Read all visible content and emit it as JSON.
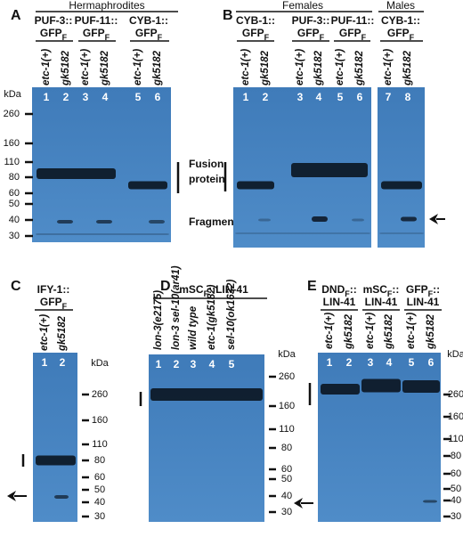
{
  "panels": [
    {
      "letter": "A",
      "headers": [
        "Hermaphrodites"
      ],
      "constructs": [
        [
          [
            {
              "text": "PUF-3::"
            }
          ],
          [
            {
              "text": "GFP"
            },
            {
              "text": "F",
              "sub": true
            }
          ]
        ],
        [
          [
            {
              "text": "PUF-11::"
            }
          ],
          [
            {
              "text": "GFP"
            },
            {
              "text": "F",
              "sub": true
            }
          ]
        ],
        [
          [
            {
              "text": "CYB-1::"
            }
          ],
          [
            {
              "text": "GFP"
            },
            {
              "text": "F",
              "sub": true
            }
          ]
        ]
      ],
      "lanes": [
        {
          "number": "1",
          "label": "etc-1(+)"
        },
        {
          "number": "2",
          "label": "gk5182"
        },
        {
          "number": "3",
          "label": "etc-1(+)"
        },
        {
          "number": "4",
          "label": "gk5182"
        },
        {
          "number": "5",
          "label": "etc-1(+)"
        },
        {
          "number": "6",
          "label": "gk5182"
        }
      ],
      "ladder": {
        "unit": "kDa",
        "marks": [
          "260",
          "160",
          "110",
          "80",
          "60",
          "50",
          "40",
          "30"
        ]
      },
      "notes": [
        "Fusion",
        "protein",
        "Fragment"
      ]
    },
    {
      "letter": "B",
      "headers": [
        "Females",
        "Males"
      ],
      "constructs": [
        [
          [
            {
              "text": "CYB-1::"
            }
          ],
          [
            {
              "text": "GFP"
            },
            {
              "text": "F",
              "sub": true
            }
          ]
        ],
        [
          [
            {
              "text": "PUF-3::"
            }
          ],
          [
            {
              "text": "GFP"
            },
            {
              "text": "F",
              "sub": true
            }
          ]
        ],
        [
          [
            {
              "text": "PUF-11::"
            }
          ],
          [
            {
              "text": "GFP"
            },
            {
              "text": "F",
              "sub": true
            }
          ]
        ],
        [
          [
            {
              "text": "CYB-1::"
            }
          ],
          [
            {
              "text": "GFP"
            },
            {
              "text": "F",
              "sub": true
            }
          ]
        ]
      ],
      "lanes": [
        {
          "number": "1",
          "label": "etc-1(+)"
        },
        {
          "number": "2",
          "label": "gk5182"
        },
        {
          "number": "3",
          "label": "etc-1(+)"
        },
        {
          "number": "4",
          "label": "gk5182"
        },
        {
          "number": "5",
          "label": "etc-1(+)"
        },
        {
          "number": "6",
          "label": "gk5182"
        },
        {
          "number": "7",
          "label": "etc-1(+)"
        },
        {
          "number": "8",
          "label": "gk5182"
        }
      ]
    },
    {
      "letter": "C",
      "headers": [],
      "constructs": [
        [
          [
            {
              "text": "IFY-1::"
            }
          ],
          [
            {
              "text": "GFP"
            },
            {
              "text": "F",
              "sub": true
            }
          ]
        ]
      ],
      "lanes": [
        {
          "number": "1",
          "label": "etc-1(+)"
        },
        {
          "number": "2",
          "label": "gk5182"
        }
      ],
      "ladder": {
        "unit": "kDa",
        "marks": [
          "260",
          "160",
          "110",
          "80",
          "60",
          "50",
          "40",
          "30"
        ]
      }
    },
    {
      "letter": "D",
      "headers": [],
      "constructs": [
        [
          [
            {
              "text": "mSC"
            },
            {
              "text": "F",
              "sub": true
            },
            {
              "text": "::LIN-41"
            }
          ]
        ]
      ],
      "lanes": [
        {
          "number": "1",
          "label": "lon-3(e2175)"
        },
        {
          "number": "2",
          "label": "lon-3 sel-10(ar41)"
        },
        {
          "number": "3",
          "label": "wild type"
        },
        {
          "number": "4",
          "label": "etc-1(gk5182)"
        },
        {
          "number": "5",
          "label": "sel-10(ok1632)"
        }
      ],
      "ladder": {
        "unit": "kDa",
        "marks": [
          "260",
          "160",
          "110",
          "80",
          "60",
          "50",
          "40",
          "30"
        ]
      }
    },
    {
      "letter": "E",
      "headers": [],
      "constructs": [
        [
          [
            {
              "text": "DND"
            },
            {
              "text": "F",
              "sub": true
            },
            {
              "text": "::"
            }
          ],
          [
            {
              "text": "LIN-41"
            }
          ]
        ],
        [
          [
            {
              "text": "mSC"
            },
            {
              "text": "F",
              "sub": true
            },
            {
              "text": "::"
            }
          ],
          [
            {
              "text": "LIN-41"
            }
          ]
        ],
        [
          [
            {
              "text": "GFP"
            },
            {
              "text": "F",
              "sub": true
            },
            {
              "text": "::"
            }
          ],
          [
            {
              "text": "LIN-41"
            }
          ]
        ]
      ],
      "lanes": [
        {
          "number": "1",
          "label": "etc-1(+)"
        },
        {
          "number": "2",
          "label": "gk5182"
        },
        {
          "number": "3",
          "label": "etc-1(+)"
        },
        {
          "number": "4",
          "label": "gk5182"
        },
        {
          "number": "5",
          "label": "etc-1(+)"
        },
        {
          "number": "6",
          "label": "gk5182"
        }
      ],
      "ladder": {
        "unit": "kDa",
        "marks": [
          "260",
          "160",
          "110",
          "80",
          "60",
          "50",
          "40",
          "30"
        ]
      }
    }
  ]
}
